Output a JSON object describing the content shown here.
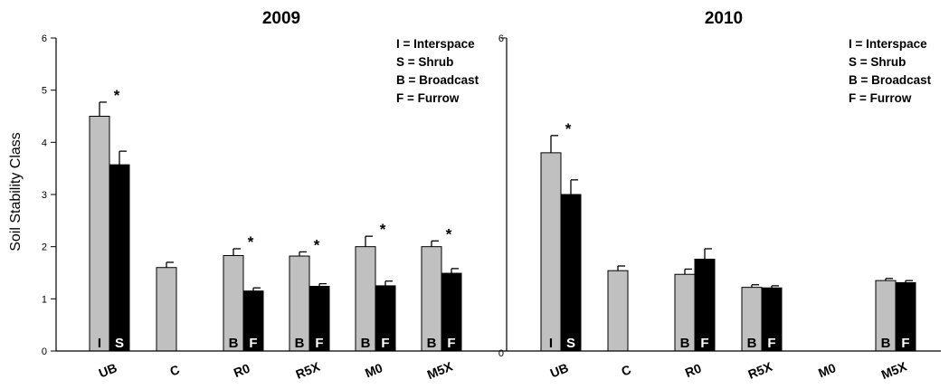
{
  "chart_data": [
    {
      "type": "bar",
      "title": "2009",
      "ylabel": "Soil Stability Class",
      "xlabel": "",
      "ylim": [
        0,
        6
      ],
      "yticks": [
        "0",
        "1",
        "2",
        "3",
        "4",
        "5",
        "6"
      ],
      "categories": [
        "UB",
        "C",
        "R0",
        "R5X",
        "M0",
        "M5X"
      ],
      "series": [
        {
          "color": "#c0c0c0",
          "values": [
            4.5,
            1.6,
            1.83,
            1.82,
            2.0,
            2.0
          ],
          "errors": [
            0.27,
            0.1,
            0.13,
            0.08,
            0.2,
            0.11
          ],
          "letters": [
            "I",
            "",
            "B",
            "B",
            "B",
            "B"
          ]
        },
        {
          "color": "#000000",
          "values": [
            3.57,
            null,
            1.15,
            1.24,
            1.25,
            1.49
          ],
          "errors": [
            0.26,
            null,
            0.06,
            0.05,
            0.09,
            0.09
          ],
          "letters": [
            "S",
            "",
            "F",
            "F",
            "F",
            "F"
          ]
        }
      ],
      "significant": [
        true,
        false,
        true,
        true,
        true,
        true
      ],
      "annotation": "*",
      "legend_position": "top-right",
      "legend": [
        "I  = Interspace",
        "S = Shrub",
        "B = Broadcast",
        "F = Furrow"
      ]
    },
    {
      "type": "bar",
      "title": "2010",
      "ylabel": "",
      "xlabel": "",
      "ylim": [
        0,
        6
      ],
      "yticks": [
        "0",
        "6"
      ],
      "categories": [
        "UB",
        "C",
        "R0",
        "R5X",
        "M0",
        "M5X"
      ],
      "series": [
        {
          "color": "#c0c0c0",
          "values": [
            3.8,
            1.54,
            1.47,
            1.22,
            null,
            1.35
          ],
          "errors": [
            0.33,
            0.09,
            0.1,
            0.05,
            null,
            0.04
          ],
          "letters": [
            "I",
            "",
            "B",
            "B",
            "",
            "B"
          ]
        },
        {
          "color": "#000000",
          "values": [
            3.0,
            null,
            1.76,
            1.21,
            null,
            1.31
          ],
          "errors": [
            0.28,
            null,
            0.2,
            0.04,
            null,
            0.04
          ],
          "letters": [
            "S",
            "",
            "F",
            "F",
            "",
            "F"
          ]
        }
      ],
      "significant": [
        true,
        false,
        false,
        false,
        false,
        false
      ],
      "annotation": "*",
      "legend_position": "top-right",
      "legend": [
        "I  = Interspace",
        "S = Shrub",
        "B = Broadcast",
        "F = Furrow"
      ]
    }
  ]
}
